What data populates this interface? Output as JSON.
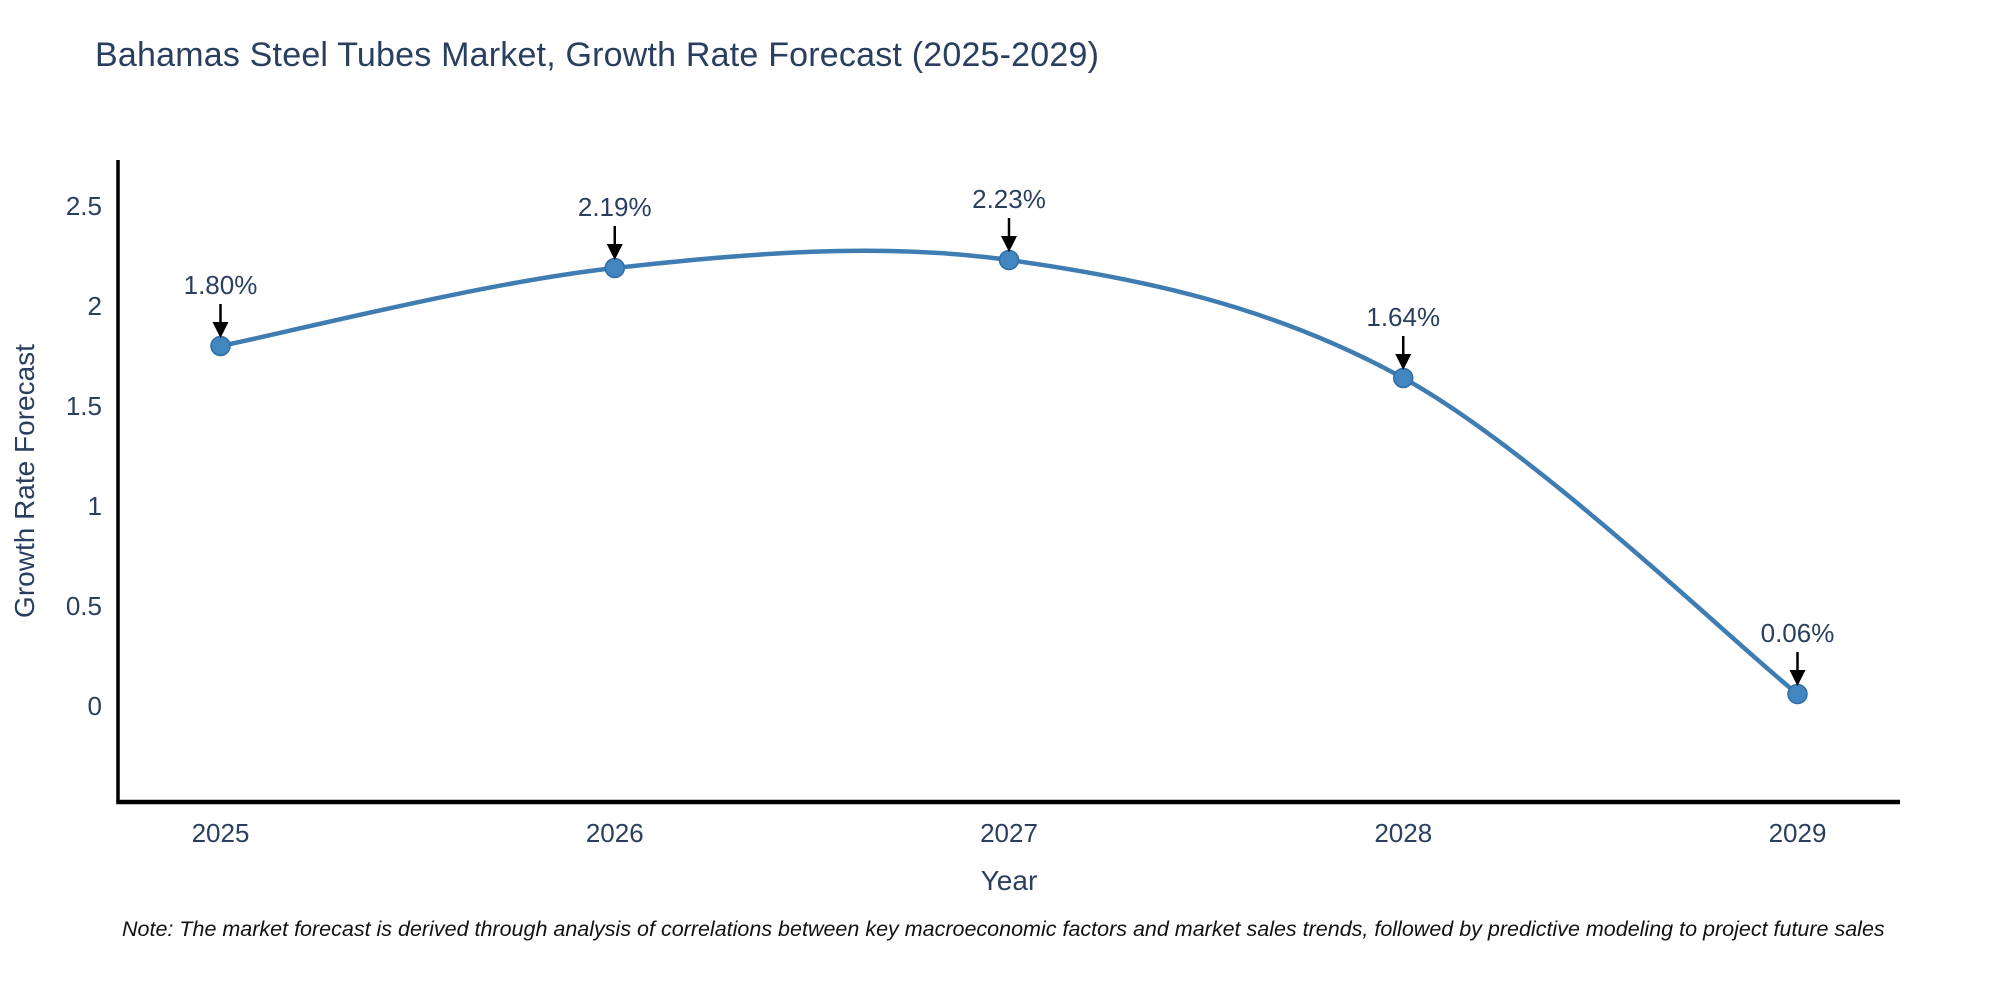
{
  "title": "Bahamas Steel Tubes Market, Growth Rate Forecast (2025-2029)",
  "note": "Note: The market forecast is derived through analysis of correlations between key macroeconomic factors and market sales trends, followed by predictive modeling to project future sales",
  "colors": {
    "title_text": "#2a3f5f",
    "tick_text": "#2a3f5f",
    "axis_line": "#000000",
    "line": "#3e7cb1",
    "marker": "#4286c0",
    "marker_edge": "#2f6da6",
    "annotation_text": "#2a3f5f",
    "arrow": "#000000"
  },
  "chart_data": {
    "type": "line",
    "title": "Bahamas Steel Tubes Market, Growth Rate Forecast (2025-2029)",
    "x": [
      2025,
      2026,
      2027,
      2028,
      2029
    ],
    "y": [
      1.8,
      2.19,
      2.23,
      1.64,
      0.06
    ],
    "point_labels": [
      "1.80%",
      "2.19%",
      "2.23%",
      "1.64%",
      "0.06%"
    ],
    "xlabel": "Year",
    "ylabel": "Growth Rate Forecast",
    "xticks": [
      2025,
      2026,
      2027,
      2028,
      2029
    ],
    "xtick_labels": [
      "2025",
      "2026",
      "2027",
      "2028",
      "2029"
    ],
    "yticks": [
      0,
      0.5,
      1,
      1.5,
      2,
      2.5
    ],
    "ytick_labels": [
      "0",
      "0.5",
      "1",
      "1.5",
      "2",
      "2.5"
    ],
    "xlim": [
      2024.74,
      2029.26
    ],
    "ylim": [
      -0.48,
      2.73
    ],
    "line_shape": "spline",
    "grid": false,
    "legend": "none",
    "annotations": "arrow-down-to-point"
  }
}
